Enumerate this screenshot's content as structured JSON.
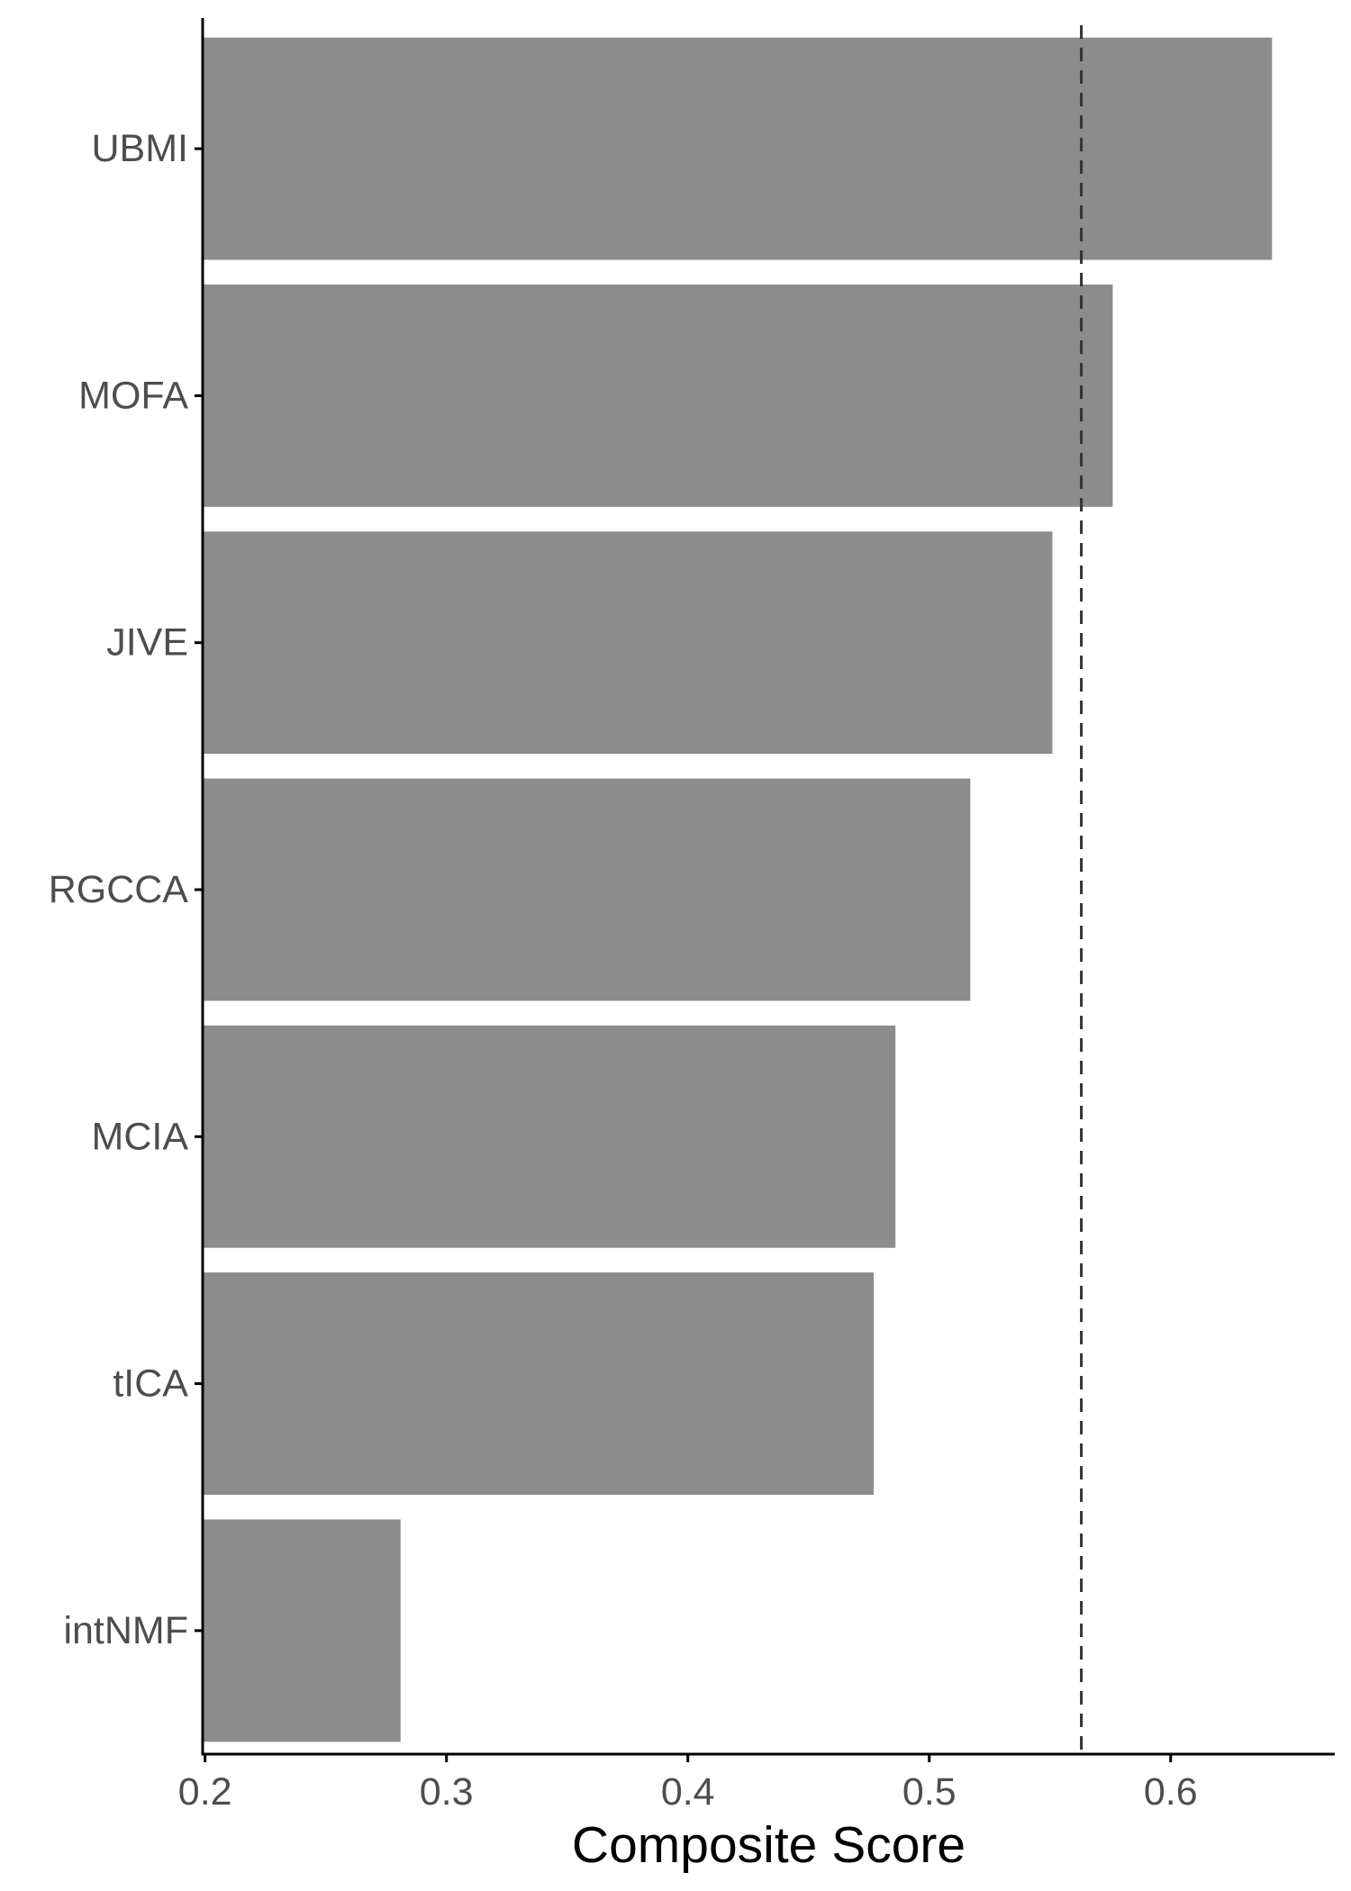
{
  "chart_data": {
    "type": "bar",
    "orientation": "horizontal",
    "title": "",
    "xlabel": "Composite Score",
    "ylabel": "",
    "categories": [
      "UBMI",
      "MOFA",
      "JIVE",
      "RGCCA",
      "MCIA",
      "tICA",
      "intNMF"
    ],
    "values": [
      0.642,
      0.576,
      0.551,
      0.517,
      0.486,
      0.477,
      0.281
    ],
    "xlim": [
      0.199,
      0.668
    ],
    "xticks": [
      0.2,
      0.3,
      0.4,
      0.5,
      0.6
    ],
    "xtick_labels": [
      "0.2",
      "0.3",
      "0.4",
      "0.5",
      "0.6"
    ],
    "reference_line": {
      "x": 0.563,
      "style": "dashed"
    },
    "grid": false,
    "legend": "none",
    "colors": {
      "bar": "#8c8c8c",
      "axis": "#000000",
      "tick_text": "#4d4d4d",
      "reference_line": "#333333"
    }
  }
}
